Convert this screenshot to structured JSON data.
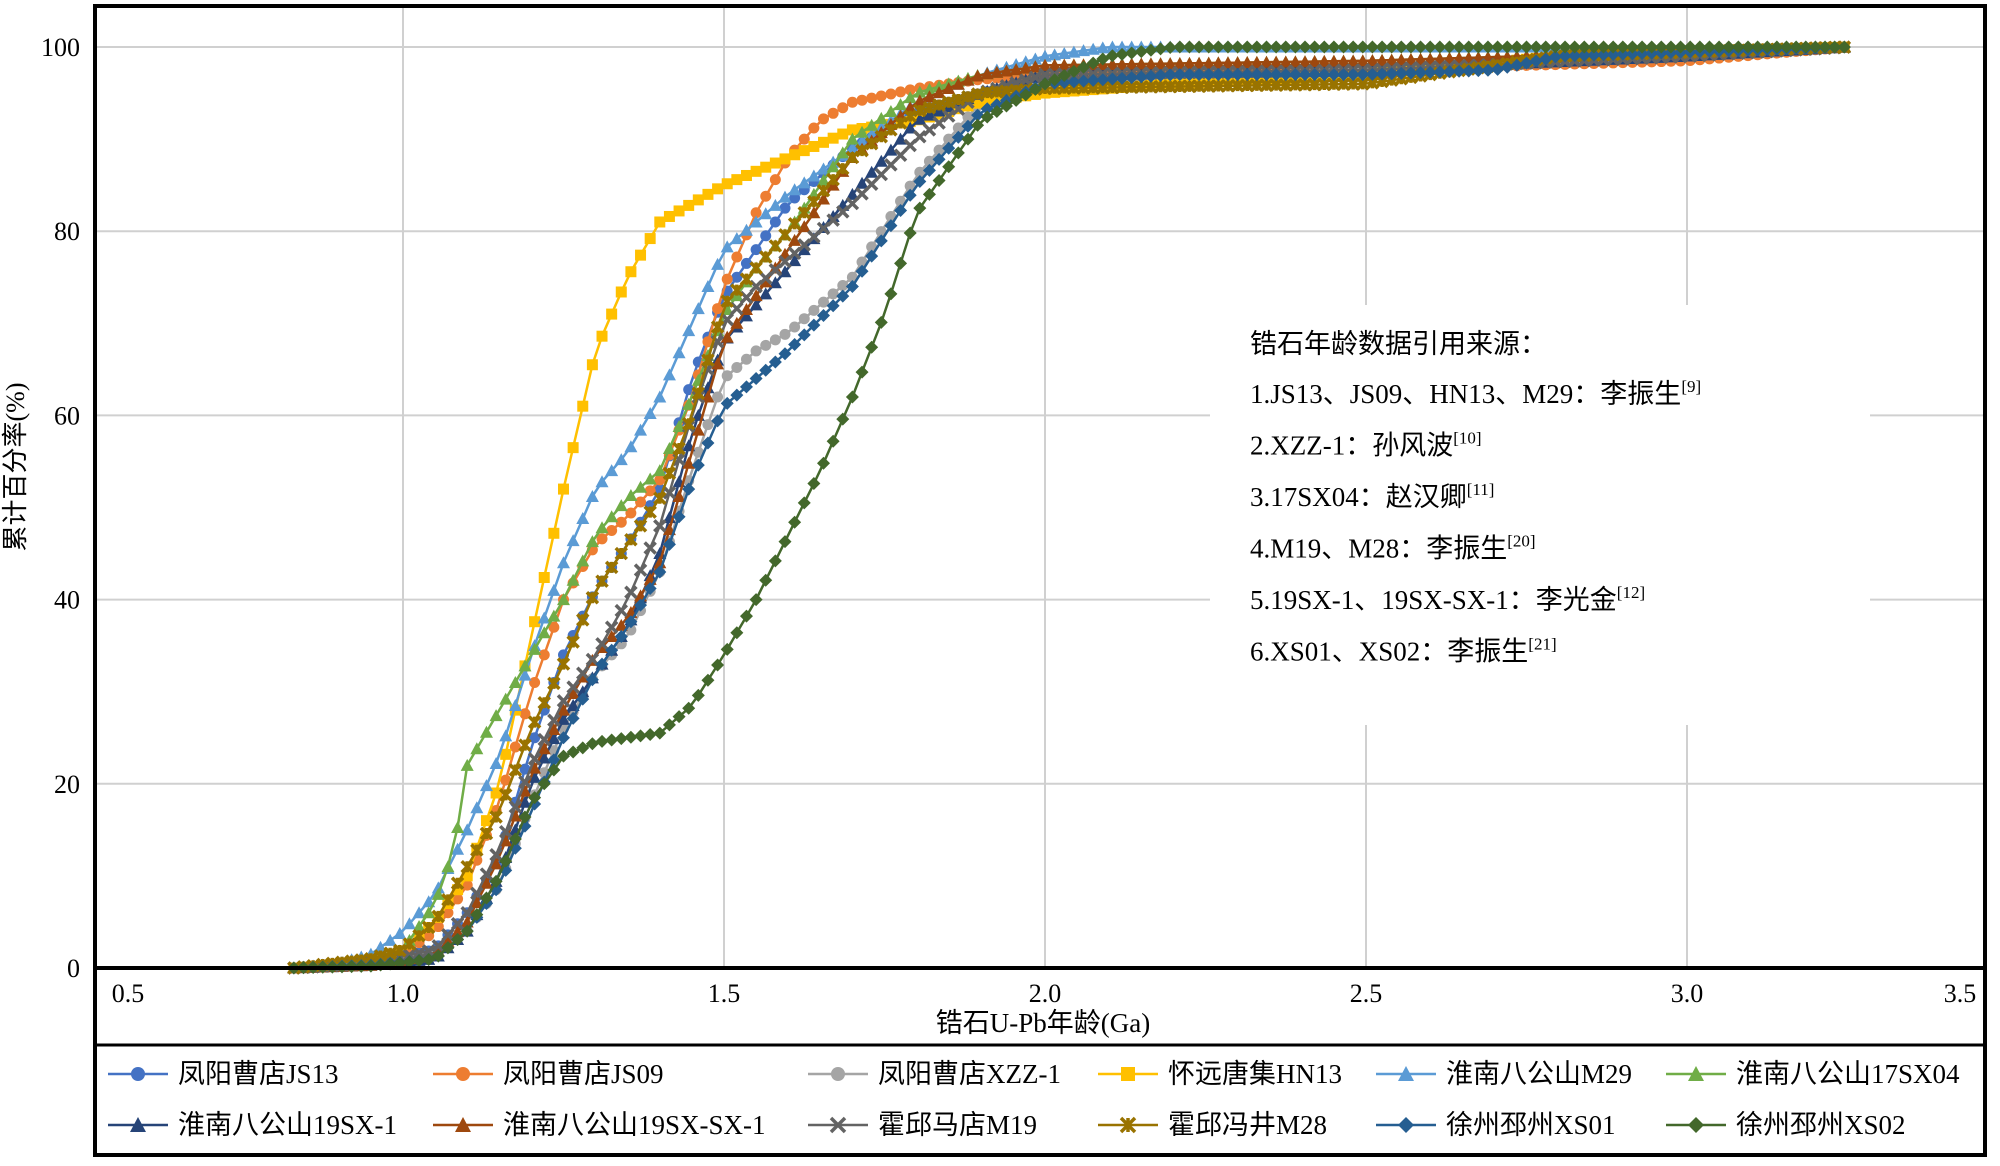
{
  "chart_data": {
    "type": "line",
    "xlabel": "锆石U-Pb年龄(Ga)",
    "ylabel": "累计百分率(%)",
    "xlim": [
      0.5,
      3.5
    ],
    "ylim": [
      0,
      100
    ],
    "x_ticks": [
      "0.5",
      "1.0",
      "1.5",
      "2.0",
      "2.5",
      "3.0",
      "3.5"
    ],
    "y_ticks": [
      "0",
      "20",
      "40",
      "60",
      "80",
      "100"
    ],
    "grid": true,
    "legend_position": "bottom",
    "annotation": {
      "title": "锆石年龄数据引用来源：",
      "lines": [
        {
          "text": "1.JS13、JS09、HN13、M29：李振生",
          "ref": "[9]"
        },
        {
          "text": "2.XZZ-1：孙风波",
          "ref": "[10]"
        },
        {
          "text": "3.17SX04：赵汉卿",
          "ref": "[11]"
        },
        {
          "text": "4.M19、M28：李振生",
          "ref": "[20]"
        },
        {
          "text": "5.19SX-1、19SX-SX-1：李光金",
          "ref": "[12]"
        },
        {
          "text": "6.XS01、XS02：李振生",
          "ref": "[21]"
        }
      ]
    },
    "series": [
      {
        "name": "凤阳曹店JS13",
        "color": "#4472C4",
        "marker": "circle",
        "points": [
          [
            0.83,
            0
          ],
          [
            0.95,
            0.5
          ],
          [
            1.05,
            2
          ],
          [
            1.1,
            6
          ],
          [
            1.15,
            12
          ],
          [
            1.2,
            24
          ],
          [
            1.25,
            34
          ],
          [
            1.3,
            41
          ],
          [
            1.35,
            46
          ],
          [
            1.4,
            52
          ],
          [
            1.45,
            64
          ],
          [
            1.5,
            73
          ],
          [
            1.55,
            78
          ],
          [
            1.6,
            83
          ],
          [
            1.7,
            89
          ],
          [
            1.8,
            93
          ],
          [
            1.9,
            95
          ],
          [
            2.0,
            96.5
          ],
          [
            2.5,
            97.5
          ],
          [
            3.0,
            99
          ],
          [
            3.25,
            100
          ]
        ]
      },
      {
        "name": "凤阳曹店JS09",
        "color": "#ED7D31",
        "marker": "circle",
        "points": [
          [
            0.83,
            0
          ],
          [
            0.95,
            0.5
          ],
          [
            1.0,
            1.5
          ],
          [
            1.05,
            4
          ],
          [
            1.1,
            9
          ],
          [
            1.15,
            18
          ],
          [
            1.2,
            30
          ],
          [
            1.25,
            40
          ],
          [
            1.3,
            46
          ],
          [
            1.35,
            49
          ],
          [
            1.4,
            53
          ],
          [
            1.45,
            62
          ],
          [
            1.5,
            74
          ],
          [
            1.55,
            82
          ],
          [
            1.6,
            88
          ],
          [
            1.65,
            92
          ],
          [
            1.7,
            94
          ],
          [
            1.8,
            95.5
          ],
          [
            1.9,
            96.5
          ],
          [
            2.0,
            97
          ],
          [
            2.5,
            97.5
          ],
          [
            3.0,
            98.5
          ],
          [
            3.25,
            100
          ]
        ]
      },
      {
        "name": "凤阳曹店XZZ-1",
        "color": "#A5A5A5",
        "marker": "circle",
        "points": [
          [
            0.83,
            0
          ],
          [
            0.95,
            0.3
          ],
          [
            1.05,
            1.5
          ],
          [
            1.1,
            4
          ],
          [
            1.15,
            9
          ],
          [
            1.2,
            18
          ],
          [
            1.25,
            26
          ],
          [
            1.3,
            32
          ],
          [
            1.35,
            36
          ],
          [
            1.4,
            43
          ],
          [
            1.45,
            54
          ],
          [
            1.5,
            64
          ],
          [
            1.55,
            67
          ],
          [
            1.6,
            69
          ],
          [
            1.7,
            75
          ],
          [
            1.8,
            86
          ],
          [
            1.9,
            94
          ],
          [
            2.0,
            96
          ],
          [
            2.5,
            97.5
          ],
          [
            3.0,
            99
          ],
          [
            3.25,
            100
          ]
        ]
      },
      {
        "name": "怀远唐集HN13",
        "color": "#FFC000",
        "marker": "square",
        "points": [
          [
            0.83,
            0
          ],
          [
            0.95,
            0.5
          ],
          [
            1.0,
            2
          ],
          [
            1.05,
            5
          ],
          [
            1.1,
            10
          ],
          [
            1.15,
            20
          ],
          [
            1.2,
            36
          ],
          [
            1.25,
            52
          ],
          [
            1.3,
            67
          ],
          [
            1.35,
            75
          ],
          [
            1.4,
            81
          ],
          [
            1.45,
            83
          ],
          [
            1.5,
            85
          ],
          [
            1.6,
            88
          ],
          [
            1.7,
            91
          ],
          [
            1.8,
            92
          ],
          [
            1.9,
            94
          ],
          [
            2.0,
            95
          ],
          [
            2.2,
            96
          ],
          [
            2.5,
            97
          ],
          [
            2.8,
            99
          ],
          [
            3.25,
            100
          ]
        ]
      },
      {
        "name": "淮南八公山M29",
        "color": "#5B9BD5",
        "marker": "triangle",
        "points": [
          [
            0.83,
            0
          ],
          [
            0.9,
            0.5
          ],
          [
            0.95,
            1.5
          ],
          [
            1.0,
            4
          ],
          [
            1.05,
            8
          ],
          [
            1.1,
            15
          ],
          [
            1.15,
            23
          ],
          [
            1.2,
            34
          ],
          [
            1.25,
            44
          ],
          [
            1.3,
            52
          ],
          [
            1.35,
            56
          ],
          [
            1.4,
            62
          ],
          [
            1.45,
            70
          ],
          [
            1.5,
            78
          ],
          [
            1.55,
            81
          ],
          [
            1.6,
            84
          ],
          [
            1.7,
            89
          ],
          [
            1.8,
            94
          ],
          [
            1.9,
            97
          ],
          [
            2.0,
            99
          ],
          [
            2.1,
            100
          ],
          [
            3.25,
            100
          ]
        ]
      },
      {
        "name": "淮南八公山17SX04",
        "color": "#70AD47",
        "marker": "triangle",
        "points": [
          [
            0.83,
            0
          ],
          [
            0.95,
            0.5
          ],
          [
            1.0,
            2
          ],
          [
            1.05,
            7
          ],
          [
            1.08,
            13
          ],
          [
            1.1,
            22
          ],
          [
            1.15,
            28
          ],
          [
            1.2,
            34
          ],
          [
            1.25,
            40
          ],
          [
            1.3,
            47
          ],
          [
            1.35,
            51
          ],
          [
            1.4,
            54
          ],
          [
            1.45,
            62
          ],
          [
            1.5,
            71
          ],
          [
            1.55,
            76
          ],
          [
            1.6,
            80
          ],
          [
            1.7,
            90
          ],
          [
            1.8,
            95
          ],
          [
            1.9,
            97
          ],
          [
            2.0,
            98
          ],
          [
            2.5,
            98.5
          ],
          [
            3.25,
            100
          ]
        ]
      },
      {
        "name": "淮南八公山19SX-1",
        "color": "#264478",
        "marker": "triangle",
        "points": [
          [
            0.83,
            0
          ],
          [
            0.95,
            0.3
          ],
          [
            1.05,
            1
          ],
          [
            1.1,
            4
          ],
          [
            1.15,
            10
          ],
          [
            1.2,
            20
          ],
          [
            1.25,
            27
          ],
          [
            1.3,
            32
          ],
          [
            1.35,
            37
          ],
          [
            1.4,
            45
          ],
          [
            1.45,
            58
          ],
          [
            1.5,
            68
          ],
          [
            1.55,
            72
          ],
          [
            1.6,
            76
          ],
          [
            1.7,
            84
          ],
          [
            1.8,
            92
          ],
          [
            1.9,
            95
          ],
          [
            2.0,
            97
          ],
          [
            2.5,
            97.5
          ],
          [
            3.0,
            99
          ],
          [
            3.25,
            100
          ]
        ]
      },
      {
        "name": "淮南八公山19SX-SX-1",
        "color": "#9E480E",
        "marker": "triangle",
        "points": [
          [
            0.83,
            0
          ],
          [
            0.95,
            0.3
          ],
          [
            1.05,
            1.5
          ],
          [
            1.1,
            5
          ],
          [
            1.15,
            12
          ],
          [
            1.2,
            21
          ],
          [
            1.25,
            28
          ],
          [
            1.3,
            34
          ],
          [
            1.35,
            38
          ],
          [
            1.4,
            44
          ],
          [
            1.45,
            56
          ],
          [
            1.5,
            68
          ],
          [
            1.55,
            73
          ],
          [
            1.6,
            78
          ],
          [
            1.7,
            88
          ],
          [
            1.8,
            94
          ],
          [
            1.9,
            97
          ],
          [
            2.0,
            98
          ],
          [
            2.5,
            98.5
          ],
          [
            3.25,
            100
          ]
        ]
      },
      {
        "name": "霍邱马店M19",
        "color": "#636363",
        "marker": "x",
        "points": [
          [
            0.83,
            0
          ],
          [
            0.95,
            0.5
          ],
          [
            1.05,
            2
          ],
          [
            1.1,
            6
          ],
          [
            1.15,
            13
          ],
          [
            1.2,
            22
          ],
          [
            1.25,
            29
          ],
          [
            1.3,
            34
          ],
          [
            1.35,
            40
          ],
          [
            1.4,
            48
          ],
          [
            1.45,
            60
          ],
          [
            1.5,
            70
          ],
          [
            1.55,
            74
          ],
          [
            1.6,
            77
          ],
          [
            1.7,
            83
          ],
          [
            1.8,
            90
          ],
          [
            1.9,
            95
          ],
          [
            2.0,
            97
          ],
          [
            2.5,
            97.5
          ],
          [
            3.0,
            99
          ],
          [
            3.25,
            100
          ]
        ]
      },
      {
        "name": "霍邱冯井M28",
        "color": "#997300",
        "marker": "star",
        "points": [
          [
            0.83,
            0
          ],
          [
            0.95,
            1
          ],
          [
            1.0,
            2
          ],
          [
            1.05,
            5
          ],
          [
            1.1,
            11
          ],
          [
            1.15,
            17
          ],
          [
            1.2,
            26
          ],
          [
            1.25,
            33
          ],
          [
            1.3,
            41
          ],
          [
            1.35,
            46
          ],
          [
            1.4,
            51
          ],
          [
            1.45,
            60
          ],
          [
            1.5,
            72
          ],
          [
            1.55,
            76
          ],
          [
            1.6,
            80
          ],
          [
            1.7,
            88
          ],
          [
            1.8,
            93
          ],
          [
            1.9,
            95
          ],
          [
            2.0,
            95.5
          ],
          [
            2.5,
            96
          ],
          [
            2.8,
            99
          ],
          [
            3.25,
            100
          ]
        ]
      },
      {
        "name": "徐州邳州XS01",
        "color": "#255E91",
        "marker": "diamond",
        "points": [
          [
            0.83,
            0
          ],
          [
            0.95,
            0.3
          ],
          [
            1.05,
            1
          ],
          [
            1.1,
            4
          ],
          [
            1.15,
            9
          ],
          [
            1.2,
            17
          ],
          [
            1.25,
            25
          ],
          [
            1.3,
            32
          ],
          [
            1.35,
            37
          ],
          [
            1.4,
            43
          ],
          [
            1.45,
            53
          ],
          [
            1.5,
            61
          ],
          [
            1.55,
            64
          ],
          [
            1.6,
            67
          ],
          [
            1.7,
            74
          ],
          [
            1.8,
            85
          ],
          [
            1.9,
            93
          ],
          [
            2.0,
            96
          ],
          [
            2.2,
            97
          ],
          [
            2.5,
            97
          ],
          [
            2.7,
            97.5
          ],
          [
            2.8,
            99
          ],
          [
            3.25,
            100
          ]
        ]
      },
      {
        "name": "徐州邳州XS02",
        "color": "#43682B",
        "marker": "diamond",
        "points": [
          [
            0.83,
            0
          ],
          [
            0.95,
            0.2
          ],
          [
            1.05,
            1
          ],
          [
            1.1,
            4
          ],
          [
            1.15,
            10
          ],
          [
            1.2,
            18
          ],
          [
            1.25,
            23
          ],
          [
            1.3,
            24.5
          ],
          [
            1.35,
            25
          ],
          [
            1.4,
            25.5
          ],
          [
            1.45,
            28.5
          ],
          [
            1.5,
            34
          ],
          [
            1.55,
            40
          ],
          [
            1.6,
            47
          ],
          [
            1.65,
            54
          ],
          [
            1.7,
            62
          ],
          [
            1.75,
            71
          ],
          [
            1.8,
            82
          ],
          [
            1.9,
            92
          ],
          [
            2.0,
            96
          ],
          [
            2.1,
            99
          ],
          [
            2.2,
            100
          ],
          [
            3.25,
            100
          ]
        ]
      }
    ]
  }
}
